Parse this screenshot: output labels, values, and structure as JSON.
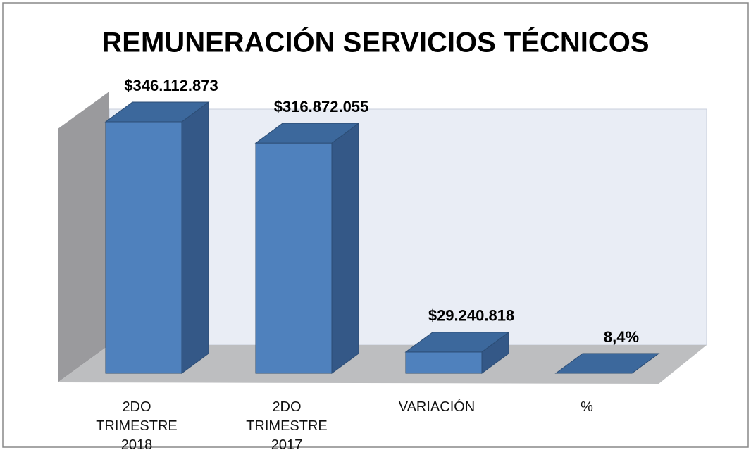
{
  "chart_data": {
    "type": "bar3d",
    "title": "REMUNERACIÓN SERVICIOS TÉCNICOS",
    "categories": [
      "2DO TRIMESTRE 2018",
      "2DO TRIMESTRE 2017",
      "VARIACIÓN",
      "%"
    ],
    "values": [
      346112873,
      316872055,
      29240818,
      8.4
    ],
    "value_labels": [
      "$346.112.873",
      "$316.872.055",
      "$29.240.818",
      "8,4%"
    ],
    "color": "#4f81bd"
  }
}
